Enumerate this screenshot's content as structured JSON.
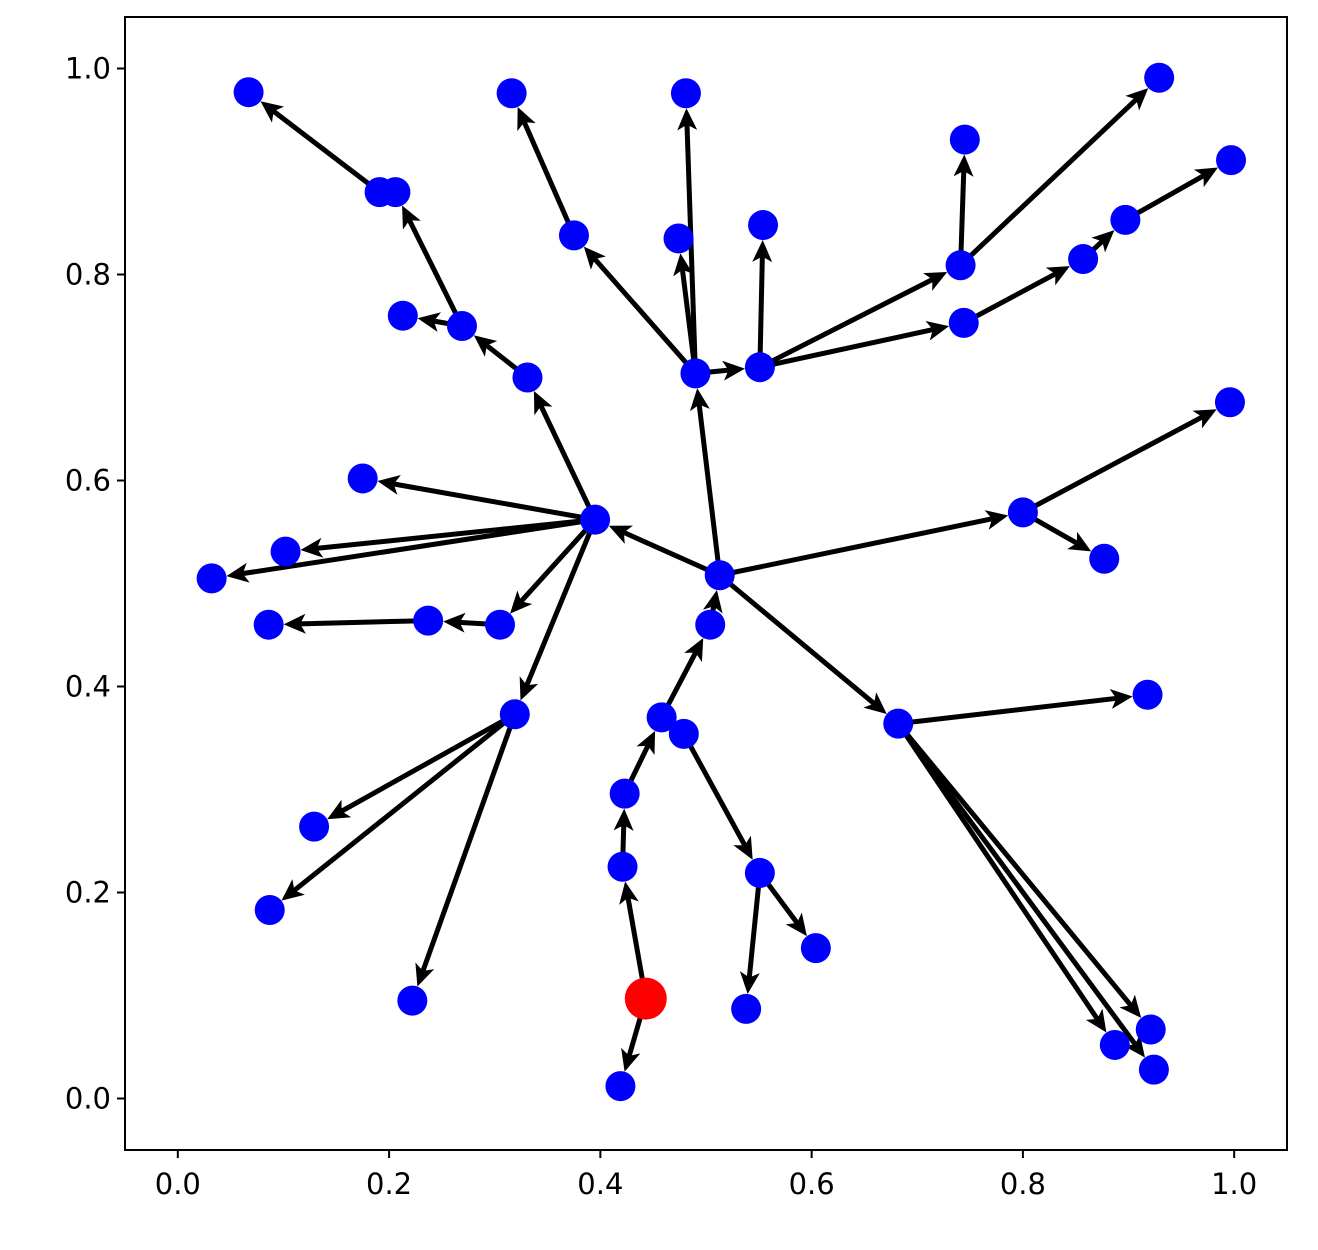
{
  "chart_data": {
    "type": "scatter",
    "title": "",
    "xlabel": "",
    "ylabel": "",
    "xlim": [
      -0.05,
      1.05
    ],
    "ylim": [
      -0.05,
      1.05
    ],
    "grid": false,
    "legend": "none",
    "x_ticks": [
      "0.0",
      "0.2",
      "0.4",
      "0.6",
      "0.8",
      "1.0"
    ],
    "y_ticks": [
      "0.0",
      "0.2",
      "0.4",
      "0.6",
      "0.8",
      "1.0"
    ],
    "colors": {
      "node": "#0000ff",
      "root": "#ff0000",
      "edge": "#000000"
    },
    "root": [
      0.443,
      0.097
    ],
    "nodes": [
      [
        0.443,
        0.097
      ],
      [
        0.419,
        0.012
      ],
      [
        0.421,
        0.225
      ],
      [
        0.423,
        0.296
      ],
      [
        0.458,
        0.37
      ],
      [
        0.504,
        0.46
      ],
      [
        0.513,
        0.508
      ],
      [
        0.49,
        0.704
      ],
      [
        0.551,
        0.71
      ],
      [
        0.395,
        0.562
      ],
      [
        0.682,
        0.364
      ],
      [
        0.8,
        0.569
      ],
      [
        0.996,
        0.676
      ],
      [
        0.877,
        0.524
      ],
      [
        0.918,
        0.392
      ],
      [
        0.887,
        0.052
      ],
      [
        0.924,
        0.028
      ],
      [
        0.921,
        0.067
      ],
      [
        0.331,
        0.7
      ],
      [
        0.269,
        0.75
      ],
      [
        0.213,
        0.76
      ],
      [
        0.206,
        0.88
      ],
      [
        0.191,
        0.88
      ],
      [
        0.067,
        0.977
      ],
      [
        0.175,
        0.602
      ],
      [
        0.102,
        0.531
      ],
      [
        0.032,
        0.505
      ],
      [
        0.305,
        0.46
      ],
      [
        0.237,
        0.464
      ],
      [
        0.086,
        0.46
      ],
      [
        0.319,
        0.373
      ],
      [
        0.129,
        0.264
      ],
      [
        0.087,
        0.183
      ],
      [
        0.222,
        0.095
      ],
      [
        0.479,
        0.354
      ],
      [
        0.551,
        0.219
      ],
      [
        0.604,
        0.146
      ],
      [
        0.538,
        0.087
      ],
      [
        0.375,
        0.838
      ],
      [
        0.316,
        0.976
      ],
      [
        0.474,
        0.835
      ],
      [
        0.481,
        0.976
      ],
      [
        0.554,
        0.848
      ],
      [
        0.741,
        0.809
      ],
      [
        0.745,
        0.931
      ],
      [
        0.929,
        0.991
      ],
      [
        0.744,
        0.753
      ],
      [
        0.857,
        0.815
      ],
      [
        0.897,
        0.853
      ],
      [
        0.997,
        0.911
      ]
    ],
    "edges": [
      [
        0,
        1
      ],
      [
        0,
        2
      ],
      [
        2,
        3
      ],
      [
        3,
        4
      ],
      [
        4,
        5
      ],
      [
        5,
        6
      ],
      [
        6,
        7
      ],
      [
        7,
        8
      ],
      [
        6,
        9
      ],
      [
        6,
        10
      ],
      [
        6,
        11
      ],
      [
        11,
        12
      ],
      [
        11,
        13
      ],
      [
        10,
        14
      ],
      [
        10,
        15
      ],
      [
        10,
        16
      ],
      [
        10,
        17
      ],
      [
        9,
        18
      ],
      [
        18,
        19
      ],
      [
        19,
        20
      ],
      [
        19,
        21
      ],
      [
        22,
        23
      ],
      [
        9,
        24
      ],
      [
        9,
        25
      ],
      [
        9,
        26
      ],
      [
        9,
        27
      ],
      [
        27,
        28
      ],
      [
        28,
        29
      ],
      [
        9,
        30
      ],
      [
        30,
        31
      ],
      [
        30,
        32
      ],
      [
        30,
        33
      ],
      [
        34,
        35
      ],
      [
        35,
        36
      ],
      [
        35,
        37
      ],
      [
        7,
        38
      ],
      [
        38,
        39
      ],
      [
        7,
        40
      ],
      [
        7,
        41
      ],
      [
        8,
        42
      ],
      [
        8,
        43
      ],
      [
        43,
        44
      ],
      [
        43,
        45
      ],
      [
        8,
        46
      ],
      [
        46,
        47
      ],
      [
        47,
        48
      ],
      [
        48,
        49
      ]
    ]
  }
}
